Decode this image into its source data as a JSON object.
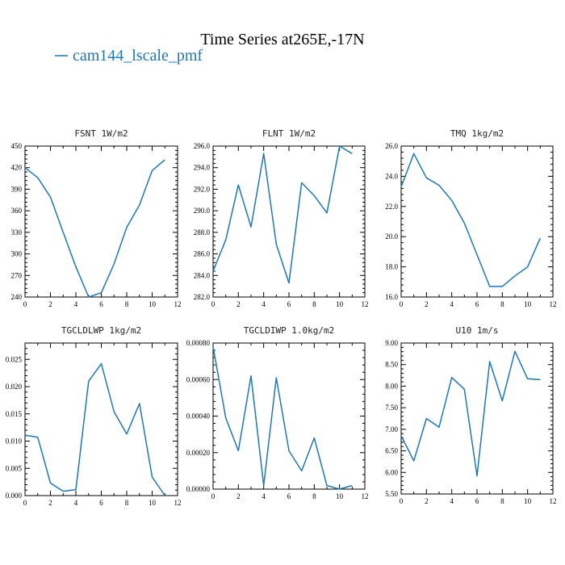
{
  "figure": {
    "title": "Time Series at265E,-17N",
    "legend_label": "cam144_lscale_pmf",
    "line_color": "#1f77b4"
  },
  "chart_data": [
    {
      "type": "line",
      "title": "FSNT 1W/m2",
      "x": [
        0,
        1,
        2,
        3,
        4,
        5,
        6,
        7,
        8,
        9,
        10,
        11
      ],
      "series": [
        {
          "name": "cam144_lscale_pmf",
          "values": [
            420,
            406,
            379,
            330,
            282,
            240,
            246,
            286,
            337,
            368,
            416,
            431
          ]
        }
      ],
      "xlim": [
        0,
        12
      ],
      "ylim": [
        240,
        450
      ],
      "xticks": [
        "0",
        "2",
        "4",
        "6",
        "8",
        "10",
        "12"
      ],
      "yticks": [
        "240",
        "270",
        "300",
        "330",
        "360",
        "390",
        "420",
        "450"
      ]
    },
    {
      "type": "line",
      "title": "FLNT 1W/m2",
      "x": [
        0,
        1,
        2,
        3,
        4,
        5,
        6,
        7,
        8,
        9,
        10,
        11
      ],
      "series": [
        {
          "name": "cam144_lscale_pmf",
          "values": [
            284.4,
            287.3,
            292.4,
            288.5,
            295.3,
            286.9,
            283.3,
            292.6,
            291.4,
            289.8,
            296.0,
            295.3
          ]
        }
      ],
      "xlim": [
        0,
        12
      ],
      "ylim": [
        282,
        296
      ],
      "xticks": [
        "0",
        "2",
        "4",
        "6",
        "8",
        "10",
        "12"
      ],
      "yticks": [
        "282.0",
        "284.0",
        "286.0",
        "288.0",
        "290.0",
        "292.0",
        "294.0",
        "296.0"
      ]
    },
    {
      "type": "line",
      "title": "TMQ 1kg/m2",
      "x": [
        0,
        1,
        2,
        3,
        4,
        5,
        6,
        7,
        8,
        9,
        10,
        11
      ],
      "series": [
        {
          "name": "cam144_lscale_pmf",
          "values": [
            23.3,
            25.5,
            23.9,
            23.4,
            22.4,
            20.9,
            18.8,
            16.7,
            16.7,
            17.4,
            18.0,
            19.9
          ]
        }
      ],
      "xlim": [
        0,
        12
      ],
      "ylim": [
        16,
        26
      ],
      "xticks": [
        "0",
        "2",
        "4",
        "6",
        "8",
        "10",
        "12"
      ],
      "yticks": [
        "16.0",
        "18.0",
        "20.0",
        "22.0",
        "24.0",
        "26.0"
      ]
    },
    {
      "type": "line",
      "title": "TGCLDLWP 1kg/m2",
      "x": [
        0,
        1,
        2,
        3,
        4,
        5,
        6,
        7,
        8,
        9,
        10,
        11
      ],
      "series": [
        {
          "name": "cam144_lscale_pmf",
          "values": [
            0.0111,
            0.0107,
            0.0023,
            0.0008,
            0.0011,
            0.021,
            0.0242,
            0.0154,
            0.0113,
            0.0169,
            0.0034,
            0.0
          ]
        }
      ],
      "xlim": [
        0,
        12
      ],
      "ylim": [
        0,
        0.028
      ],
      "xticks": [
        "0",
        "2",
        "4",
        "6",
        "8",
        "10",
        "12"
      ],
      "yticks": [
        "0.000",
        "0.005",
        "0.010",
        "0.015",
        "0.020",
        "0.025"
      ],
      "yticks_values": [
        0,
        0.005,
        0.01,
        0.015,
        0.02,
        0.025
      ]
    },
    {
      "type": "line",
      "title": "TGCLDIWP 1.0kg/m2",
      "x": [
        0,
        1,
        2,
        3,
        4,
        5,
        6,
        7,
        8,
        9,
        10,
        11
      ],
      "series": [
        {
          "name": "cam144_lscale_pmf",
          "values": [
            0.00078,
            0.00039,
            0.00021,
            0.00062,
            2e-05,
            0.00061,
            0.00021,
            0.0001,
            0.00028,
            2e-05,
            0.0,
            2e-05
          ]
        }
      ],
      "xlim": [
        0,
        12
      ],
      "ylim": [
        0,
        0.0008
      ],
      "xticks": [
        "0",
        "2",
        "4",
        "6",
        "8",
        "10",
        "12"
      ],
      "yticks": [
        "0.00000",
        "0.00020",
        "0.00040",
        "0.00060",
        "0.00080"
      ]
    },
    {
      "type": "line",
      "title": "U10 1m/s",
      "x": [
        0,
        1,
        2,
        3,
        4,
        5,
        6,
        7,
        8,
        9,
        10,
        11
      ],
      "series": [
        {
          "name": "cam144_lscale_pmf",
          "values": [
            6.85,
            6.27,
            7.25,
            7.05,
            8.2,
            7.93,
            5.92,
            8.57,
            7.66,
            8.81,
            8.17,
            8.15
          ]
        }
      ],
      "xlim": [
        0,
        12
      ],
      "ylim": [
        5.5,
        9.0
      ],
      "xticks": [
        "0",
        "2",
        "4",
        "6",
        "8",
        "10",
        "12"
      ],
      "yticks": [
        "5.50",
        "6.00",
        "6.50",
        "7.00",
        "7.50",
        "8.00",
        "8.50",
        "9.00"
      ]
    }
  ]
}
